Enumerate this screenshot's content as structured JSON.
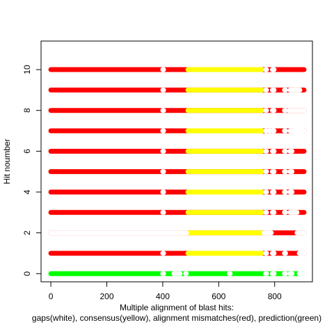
{
  "chart_data": {
    "type": "scatter",
    "title": "",
    "xlabel": "Multiple alignment of blast hits:",
    "xlabel_line2": "gaps(white), consensus(yellow), alignment mismatches(red), prediction(green)",
    "ylabel": "Hit noumber",
    "xlim": [
      -35,
      935
    ],
    "ylim": [
      -0.4,
      11.4
    ],
    "x_ticks": [
      0,
      200,
      400,
      600,
      800
    ],
    "y_ticks": [
      0,
      2,
      4,
      6,
      8,
      10
    ],
    "hit_span": [
      0,
      905
    ],
    "consensus_span": [
      490,
      755
    ],
    "colors": {
      "mismatch": "#ff0000",
      "consensus": "#ffff00",
      "gap": "#ffffff",
      "prediction": "#00ff00"
    },
    "rows": [
      {
        "hit": 0,
        "base": "prediction",
        "gaps": [
          [
            400,
            403
          ],
          [
            440,
            448
          ],
          [
            458,
            462
          ],
          [
            482,
            484
          ],
          [
            638,
            641
          ],
          [
            768,
            771
          ],
          [
            792,
            798
          ],
          [
            835,
            839
          ],
          [
            855,
            862
          ],
          [
            888,
            905
          ]
        ]
      },
      {
        "hit": 1,
        "base": "mismatch",
        "gaps": [
          [
            400,
            403
          ],
          [
            768,
            771
          ],
          [
            792,
            798
          ],
          [
            835,
            839
          ],
          [
            888,
            905
          ]
        ]
      },
      {
        "hit": 2,
        "base": "mismatch",
        "gaps": [
          [
            0,
            485
          ],
          [
            762,
            768
          ],
          [
            772,
            788
          ],
          [
            880,
            905
          ]
        ]
      },
      {
        "hit": 3,
        "base": "mismatch",
        "gaps": [
          [
            400,
            403
          ],
          [
            768,
            771
          ],
          [
            792,
            798
          ],
          [
            835,
            839
          ],
          [
            855,
            862
          ],
          [
            868,
            880
          ]
        ]
      },
      {
        "hit": 4,
        "base": "mismatch",
        "gaps": [
          [
            400,
            403
          ],
          [
            768,
            771
          ],
          [
            792,
            798
          ],
          [
            835,
            839
          ],
          [
            855,
            862
          ]
        ]
      },
      {
        "hit": 5,
        "base": "mismatch",
        "gaps": [
          [
            400,
            403
          ],
          [
            768,
            771
          ],
          [
            792,
            798
          ],
          [
            835,
            839
          ],
          [
            855,
            862
          ]
        ]
      },
      {
        "hit": 6,
        "base": "mismatch",
        "gaps": [
          [
            400,
            403
          ],
          [
            768,
            771
          ],
          [
            792,
            798
          ],
          [
            835,
            839
          ],
          [
            855,
            862
          ]
        ]
      },
      {
        "hit": 7,
        "base": "mismatch",
        "gaps": [
          [
            400,
            403
          ],
          [
            768,
            771
          ],
          [
            780,
            784
          ],
          [
            792,
            798
          ],
          [
            835,
            839
          ],
          [
            855,
            862
          ],
          [
            868,
            905
          ]
        ]
      },
      {
        "hit": 8,
        "base": "mismatch",
        "gaps": [
          [
            400,
            403
          ],
          [
            768,
            771
          ],
          [
            792,
            798
          ],
          [
            835,
            839
          ],
          [
            850,
            905
          ]
        ]
      },
      {
        "hit": 9,
        "base": "mismatch",
        "gaps": [
          [
            400,
            403
          ],
          [
            768,
            771
          ],
          [
            792,
            798
          ],
          [
            835,
            839
          ],
          [
            855,
            862
          ],
          [
            868,
            890
          ]
        ]
      },
      {
        "hit": 10,
        "base": "mismatch",
        "gaps": [
          [
            400,
            403
          ],
          [
            768,
            771
          ],
          [
            792,
            798
          ]
        ]
      }
    ]
  }
}
